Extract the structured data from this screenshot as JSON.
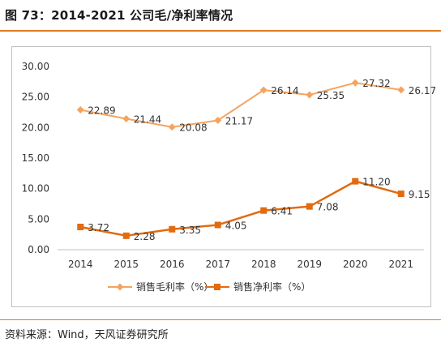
{
  "header": {
    "title": "图 73：2014-2021 公司毛/净利率情况"
  },
  "footer": {
    "source": "资料来源：Wind，天风证券研究所"
  },
  "colors": {
    "accent": "#e07b24",
    "gross": "#f4a460",
    "net": "#e26b10"
  },
  "chart_data": {
    "type": "line",
    "title": "",
    "xlabel": "",
    "ylabel": "",
    "categories": [
      "2014",
      "2015",
      "2016",
      "2017",
      "2018",
      "2019",
      "2020",
      "2021"
    ],
    "ylim": [
      0,
      30
    ],
    "yticks": [
      "0.00",
      "5.00",
      "10.00",
      "15.00",
      "20.00",
      "25.00",
      "30.00"
    ],
    "grid": false,
    "legend": "bottom",
    "series": [
      {
        "name": "销售毛利率（%）",
        "marker": "diamond",
        "values": [
          22.89,
          21.44,
          20.08,
          21.17,
          26.14,
          25.35,
          27.32,
          26.17
        ],
        "labels": [
          "22.89",
          "21.44",
          "20.08",
          "21.17",
          "26.14",
          "25.35",
          "27.32",
          "26.17"
        ]
      },
      {
        "name": "销售净利率（%）",
        "marker": "square",
        "values": [
          3.72,
          2.28,
          3.35,
          4.05,
          6.41,
          7.08,
          11.2,
          9.15
        ],
        "labels": [
          "3.72",
          "2.28",
          "3.35",
          "4.05",
          "6.41",
          "7.08",
          "11.20",
          "9.15"
        ]
      }
    ]
  }
}
